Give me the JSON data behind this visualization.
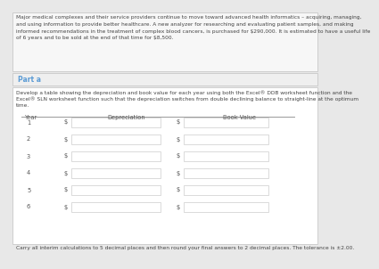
{
  "title_text_lines": [
    "Major medical complexes and their service providers continue to move toward advanced health informatics – acquiring, managing,",
    "and using information to provide better healthcare. A new analyzer for researching and evaluating patient samples, and making",
    "informed recommendations in the treatment of complex blood cancers, is purchased for $290,000. It is estimated to have a useful life",
    "of 6 years and to be sold at the end of that time for $8,500."
  ],
  "part_a_label": "Part a",
  "instructions_lines": [
    "Develop a table showing the depreciation and book value for each year using both the Excel® DDB worksheet function and the",
    "Excel® SLN worksheet function such that the depreciation switches from double declining balance to straight-line at the optimum",
    "time."
  ],
  "col_year": "Year",
  "col_dep": "Depreciation",
  "col_bv": "Book Value",
  "years": [
    1,
    2,
    3,
    4,
    5,
    6
  ],
  "footer": "Carry all interim calculations to 5 decimal places and then round your final answers to 2 decimal places. The tolerance is ±2.00.",
  "bg_outer": "#e8e8e8",
  "bg_top_box": "#f7f7f7",
  "bg_part_a": "#efefef",
  "bg_main": "#ffffff",
  "part_a_color": "#5b9bd5",
  "text_color": "#444444",
  "box_border": "#c8c8c8",
  "input_border": "#cccccc",
  "header_line_color": "#999999"
}
